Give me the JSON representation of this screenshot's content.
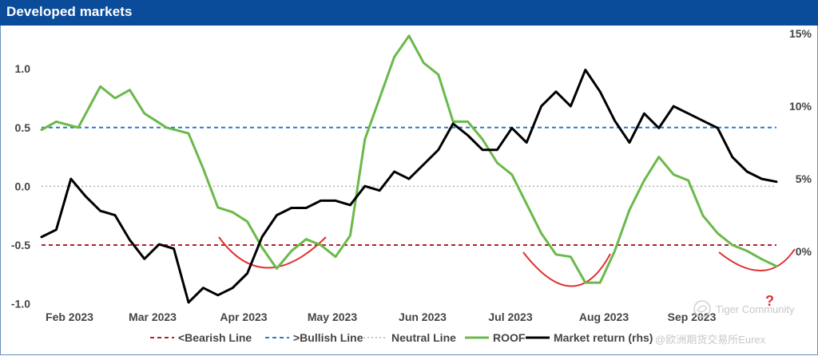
{
  "header": {
    "title": "Developed markets"
  },
  "chart_data": {
    "type": "line",
    "title": "Developed markets",
    "x_labels": [
      "Feb 2023",
      "Mar 2023",
      "Apr 2023",
      "May 2023",
      "Jun 2023",
      "Jul 2023",
      "Aug 2023",
      "Sep 2023"
    ],
    "y_left": {
      "ticks": [
        -1.0,
        -0.5,
        0.0,
        0.5,
        1.0
      ],
      "tick_labels": [
        "-1.0",
        "-0.5",
        "0.0",
        "0.5",
        "1.0"
      ],
      "range": [
        -1.05,
        1.3
      ]
    },
    "y_right": {
      "ticks": [
        0,
        5,
        10,
        15
      ],
      "tick_labels": [
        "0%",
        "5%",
        "10%",
        "15%"
      ],
      "range": [
        -4,
        15
      ]
    },
    "reference_lines": [
      {
        "name": "<Bearish Line",
        "value": -0.5,
        "style": "dashed",
        "color": "#b2202a"
      },
      {
        "name": ">Bullish Line",
        "value": 0.5,
        "style": "dashed",
        "color": "#2b7bc4"
      },
      {
        "name": "Neutral Line",
        "value": 0.0,
        "style": "dotted",
        "color": "#b4b4b4"
      }
    ],
    "series": [
      {
        "name": "ROOF",
        "axis": "left",
        "color": "#6ab94a",
        "t": [
          0,
          0.02,
          0.05,
          0.08,
          0.1,
          0.12,
          0.14,
          0.17,
          0.2,
          0.22,
          0.24,
          0.26,
          0.28,
          0.3,
          0.32,
          0.34,
          0.36,
          0.38,
          0.4,
          0.42,
          0.44,
          0.46,
          0.48,
          0.5,
          0.52,
          0.54,
          0.56,
          0.58,
          0.6,
          0.62,
          0.64,
          0.66,
          0.68,
          0.7,
          0.72,
          0.74,
          0.76,
          0.78,
          0.8,
          0.82,
          0.84,
          0.86,
          0.88,
          0.9,
          0.92,
          0.94,
          0.96,
          0.98,
          1
        ],
        "values": [
          0.48,
          0.55,
          0.5,
          0.85,
          0.75,
          0.82,
          0.62,
          0.5,
          0.45,
          0.15,
          -0.18,
          -0.22,
          -0.3,
          -0.52,
          -0.7,
          -0.55,
          -0.45,
          -0.5,
          -0.6,
          -0.42,
          0.4,
          0.75,
          1.1,
          1.28,
          1.05,
          0.95,
          0.55,
          0.55,
          0.4,
          0.2,
          0.1,
          -0.15,
          -0.4,
          -0.58,
          -0.6,
          -0.82,
          -0.82,
          -0.55,
          -0.2,
          0.05,
          0.25,
          0.1,
          0.05,
          -0.25,
          -0.4,
          -0.5,
          -0.55,
          -0.62,
          -0.68
        ]
      },
      {
        "name": "Market return (rhs)",
        "axis": "right",
        "color": "#000000",
        "t": [
          0,
          0.02,
          0.04,
          0.06,
          0.08,
          0.1,
          0.12,
          0.14,
          0.16,
          0.18,
          0.2,
          0.22,
          0.24,
          0.26,
          0.28,
          0.3,
          0.32,
          0.34,
          0.36,
          0.38,
          0.4,
          0.42,
          0.44,
          0.46,
          0.48,
          0.5,
          0.52,
          0.54,
          0.56,
          0.58,
          0.6,
          0.62,
          0.64,
          0.66,
          0.68,
          0.7,
          0.72,
          0.74,
          0.76,
          0.78,
          0.8,
          0.82,
          0.84,
          0.86,
          0.88,
          0.9,
          0.92,
          0.94,
          0.96,
          0.98,
          1
        ],
        "values": [
          1,
          1.5,
          5,
          3.8,
          2.8,
          2.5,
          0.8,
          -0.5,
          0.5,
          0.2,
          -3.5,
          -2.5,
          -3,
          -2.5,
          -1.5,
          1,
          2.5,
          3,
          3,
          3.5,
          3.5,
          3.2,
          4.5,
          4.2,
          5.5,
          5,
          6,
          7,
          8.8,
          8,
          7,
          7,
          8.5,
          7.5,
          10,
          11,
          10,
          12.5,
          11,
          9,
          7.5,
          9.5,
          8.5,
          10,
          9.5,
          9,
          8.5,
          6.5,
          5.5,
          5,
          4.8
        ]
      }
    ],
    "legend": [
      "<Bearish Line",
      ">Bullish Line",
      "Neutral Line",
      "ROOF",
      "Market return (rhs)"
    ]
  },
  "annotations": {
    "question_mark": "?",
    "watermark_1": "Tiger Community",
    "watermark_2": "@欧洲期货交易所Eurex"
  },
  "colors": {
    "header_bg": "#0a4c9a",
    "frame": "#6a8fc3",
    "curve": "#e03030"
  }
}
